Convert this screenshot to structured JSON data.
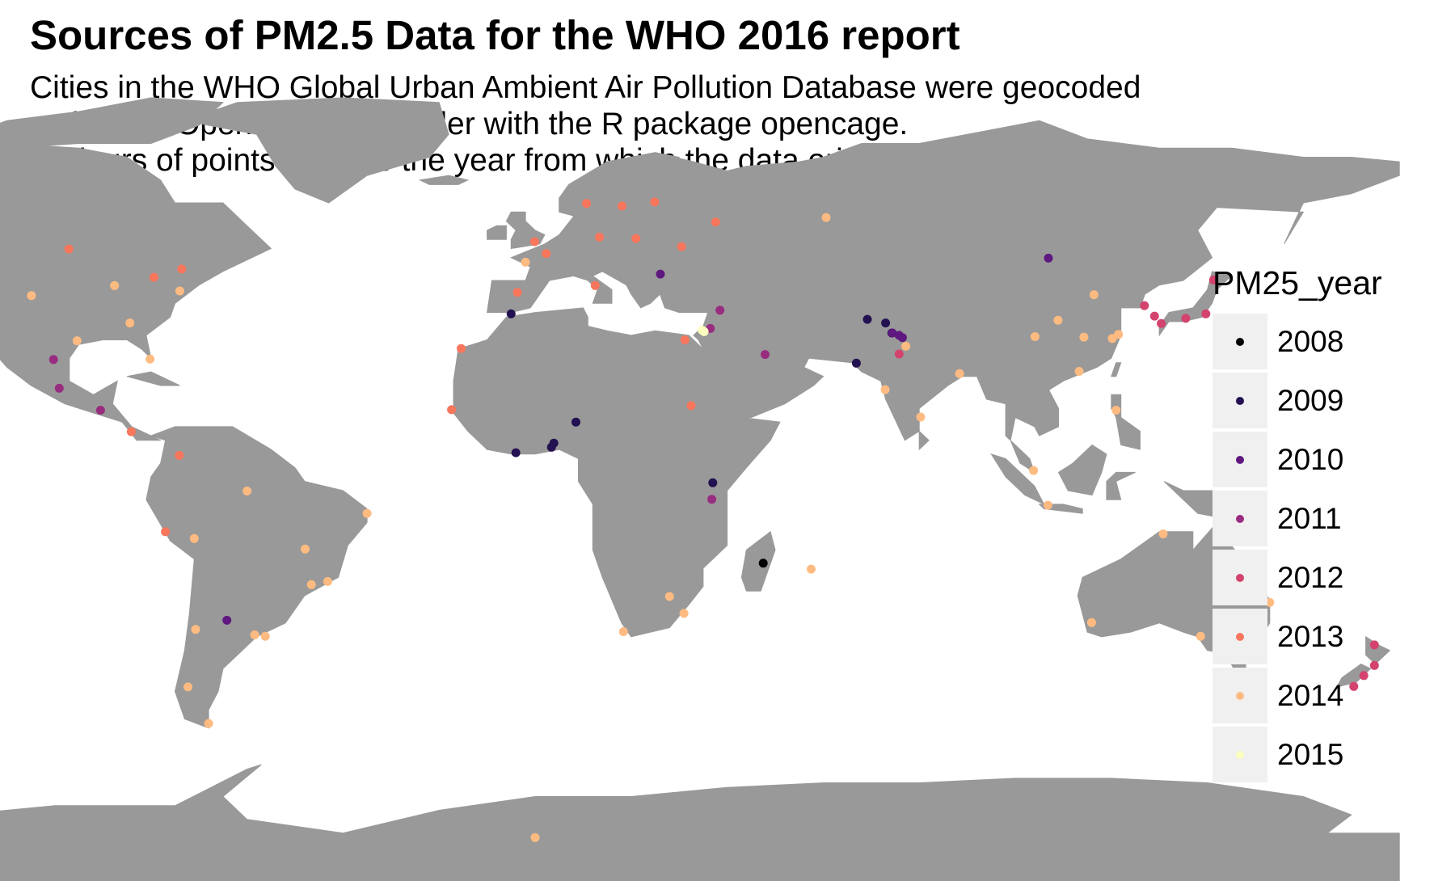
{
  "title": "Sources of PM2.5 Data for the WHO 2016 report",
  "subtitle_lines": [
    "Cities in the WHO Global Urban Ambient Air Pollution Database were geocoded",
    " using the OpenCage Geocoder with the R package opencage.",
    " Colours of points indicate the year from which the data originate."
  ],
  "chart_data": {
    "type": "scatter",
    "title": "Sources of PM2.5 Data for the WHO 2016 report",
    "subtitle": "Cities in the WHO Global Urban Ambient Air Pollution Database were geocoded using the OpenCage Geocoder with the R package opencage. Colours of points indicate the year from which the data originate.",
    "xlabel": "",
    "ylabel": "",
    "grid": false,
    "legend_position": "right",
    "land_color": "#999999",
    "legend": {
      "title": "PM25_year",
      "items": [
        {
          "label": "2008",
          "color": "#000004"
        },
        {
          "label": "2009",
          "color": "#231151"
        },
        {
          "label": "2010",
          "color": "#5f187f"
        },
        {
          "label": "2011",
          "color": "#982d80"
        },
        {
          "label": "2012",
          "color": "#d3436e"
        },
        {
          "label": "2013",
          "color": "#f8765c"
        },
        {
          "label": "2014",
          "color": "#febb81"
        },
        {
          "label": "2015",
          "color": "#fcfdbf"
        }
      ]
    },
    "series": [
      {
        "name": "2008",
        "points": [
          [
            47.5,
            -18.9
          ]
        ]
      },
      {
        "name": "2009",
        "points": [
          [
            -4.0,
            5.3
          ],
          [
            3.4,
            6.5
          ],
          [
            8.5,
            12.0
          ],
          [
            3.9,
            7.4
          ],
          [
            37.0,
            -1.3
          ],
          [
            -5.0,
            35.7
          ],
          [
            69.2,
            34.5
          ],
          [
            73.0,
            33.7
          ],
          [
            66.9,
            24.9
          ],
          [
            74.3,
            31.5
          ]
        ]
      },
      {
        "name": "2010",
        "points": [
          [
            106.9,
            47.9
          ],
          [
            74.4,
            31.5
          ],
          [
            75.8,
            31.0
          ],
          [
            76.5,
            30.5
          ],
          [
            26.1,
            44.4
          ],
          [
            -64.2,
            -31.4
          ]
        ]
      },
      {
        "name": "2011",
        "points": [
          [
            -99.1,
            19.4
          ],
          [
            -100.3,
            25.7
          ],
          [
            -90.5,
            14.6
          ],
          [
            36.8,
            -4.9
          ],
          [
            36.5,
            32.5
          ],
          [
            38.5,
            36.5
          ],
          [
            47.9,
            26.8
          ]
        ]
      },
      {
        "name": "2012",
        "points": [
          [
            139.7,
            35.7
          ],
          [
            135.5,
            34.7
          ],
          [
            130.4,
            33.6
          ],
          [
            141.3,
            43.1
          ],
          [
            126.9,
            37.5
          ],
          [
            129.0,
            35.2
          ],
          [
            174.8,
            -36.8
          ],
          [
            172.6,
            -43.5
          ],
          [
            170.5,
            -45.9
          ],
          [
            174.8,
            -41.3
          ],
          [
            75.8,
            26.9
          ]
        ]
      },
      {
        "name": "2013",
        "points": [
          [
            2.3,
            48.9
          ],
          [
            13.4,
            52.5
          ],
          [
            -0.1,
            51.5
          ],
          [
            -3.7,
            40.4
          ],
          [
            12.5,
            41.9
          ],
          [
            21.0,
            52.2
          ],
          [
            30.5,
            50.4
          ],
          [
            37.6,
            55.8
          ],
          [
            18.1,
            59.3
          ],
          [
            10.7,
            59.9
          ],
          [
            24.9,
            60.2
          ],
          [
            -79.4,
            43.7
          ],
          [
            -73.6,
            45.5
          ],
          [
            -114.1,
            51.0
          ],
          [
            -123.1,
            49.3
          ],
          [
            -113.5,
            53.5
          ],
          [
            -97.1,
            49.9
          ],
          [
            -74.1,
            4.7
          ],
          [
            -77.0,
            -12.0
          ],
          [
            -84.1,
            9.9
          ],
          [
            -15.4,
            28.1
          ],
          [
            -17.4,
            14.7
          ],
          [
            32.5,
            15.6
          ],
          [
            151.2,
            -33.9
          ],
          [
            144.9,
            -37.8
          ],
          [
            31.2,
            30.0
          ]
        ]
      },
      {
        "name": "2014",
        "points": [
          [
            -74.0,
            40.7
          ],
          [
            -118.2,
            34.1
          ],
          [
            -87.6,
            41.9
          ],
          [
            -95.4,
            29.8
          ],
          [
            -122.4,
            37.8
          ],
          [
            -80.2,
            25.8
          ],
          [
            -104.9,
            39.7
          ],
          [
            -84.4,
            33.7
          ],
          [
            -157.9,
            21.3
          ],
          [
            -149.9,
            61.2
          ],
          [
            116.4,
            39.9
          ],
          [
            121.5,
            31.2
          ],
          [
            113.3,
            23.1
          ],
          [
            104.1,
            30.7
          ],
          [
            114.3,
            30.6
          ],
          [
            108.9,
            34.3
          ],
          [
            120.2,
            30.3
          ],
          [
            103.8,
            1.4
          ],
          [
            121.0,
            14.6
          ],
          [
            106.8,
            -6.2
          ],
          [
            -43.2,
            -22.9
          ],
          [
            -46.6,
            -23.6
          ],
          [
            -58.4,
            -34.6
          ],
          [
            -70.7,
            -33.4
          ],
          [
            -56.2,
            -34.9
          ],
          [
            -72.3,
            -46.0
          ],
          [
            -71.0,
            -13.5
          ],
          [
            -47.9,
            -15.8
          ],
          [
            -35.0,
            -8.0
          ],
          [
            -60.0,
            -3.1
          ],
          [
            18.4,
            -33.9
          ],
          [
            28.0,
            -26.2
          ],
          [
            31.0,
            -29.9
          ],
          [
            57.5,
            -20.2
          ],
          [
            115.9,
            -31.9
          ],
          [
            153.0,
            -27.5
          ],
          [
            138.6,
            -34.9
          ],
          [
            130.8,
            -12.5
          ],
          [
            77.2,
            28.6
          ],
          [
            72.9,
            19.1
          ],
          [
            88.4,
            22.6
          ],
          [
            80.3,
            13.1
          ],
          [
            60.6,
            56.8
          ],
          [
            -68.0,
            -54.0
          ],
          [
            0.0,
            -79.0
          ],
          [
            -2.0,
            47.0
          ]
        ]
      },
      {
        "name": "2015",
        "points": [
          [
            35.2,
            31.8
          ],
          [
            34.8,
            32.1
          ]
        ]
      }
    ]
  }
}
